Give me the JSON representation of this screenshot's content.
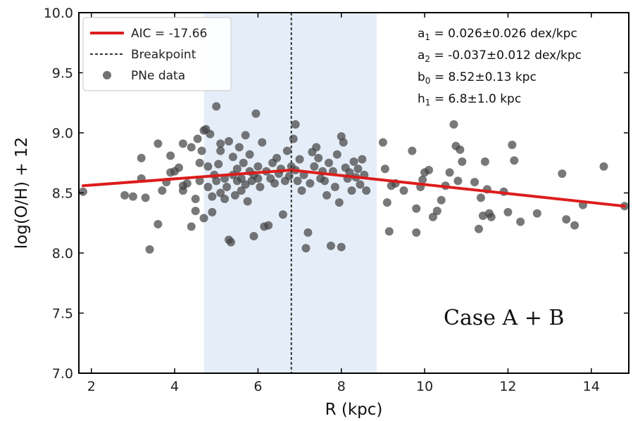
{
  "chart_data": {
    "type": "scatter",
    "xlabel": "R (kpc)",
    "ylabel": "log(O/H) + 12",
    "xlim": [
      1.7,
      14.9
    ],
    "ylim": [
      7.0,
      10.0
    ],
    "xticks": [
      "2",
      "4",
      "6",
      "8",
      "10",
      "12",
      "14"
    ],
    "yticks": [
      "7.0",
      "7.5",
      "8.0",
      "8.5",
      "9.0",
      "9.5",
      "10.0"
    ],
    "legend": {
      "placement": "top-left",
      "entries": [
        "AIC = -17.66",
        "Breakpoint",
        "PNe data"
      ]
    },
    "parameters": [
      {
        "sym": "a",
        "sub": "1",
        "text": " = 0.026±0.026 dex/kpc"
      },
      {
        "sym": "a",
        "sub": "2",
        "text": " = -0.037±0.012 dex/kpc"
      },
      {
        "sym": "b",
        "sub": "0",
        "text": " = 8.52±0.13 kpc"
      },
      {
        "sym": "h",
        "sub": "1",
        "text": " = 6.8±1.0 kpc"
      }
    ],
    "annotation": "Case A + B",
    "breakpoint": 6.8,
    "shaded_region": [
      4.7,
      8.85
    ],
    "fit_line": {
      "name": "AIC = -17.66",
      "color": "#dd1c1c",
      "x": [
        1.8,
        6.8,
        14.8
      ],
      "y": [
        8.56,
        8.69,
        8.39
      ]
    },
    "series": [
      {
        "name": "PNe data",
        "color": "#444444",
        "points": [
          [
            1.8,
            8.51
          ],
          [
            2.8,
            8.48
          ],
          [
            3.0,
            8.47
          ],
          [
            3.2,
            8.79
          ],
          [
            3.2,
            8.62
          ],
          [
            3.3,
            8.46
          ],
          [
            3.4,
            8.03
          ],
          [
            3.6,
            8.24
          ],
          [
            3.6,
            8.91
          ],
          [
            3.7,
            8.52
          ],
          [
            3.8,
            8.59
          ],
          [
            3.9,
            8.67
          ],
          [
            3.9,
            8.81
          ],
          [
            4.0,
            8.68
          ],
          [
            4.1,
            8.71
          ],
          [
            4.2,
            8.56
          ],
          [
            4.2,
            8.52
          ],
          [
            4.2,
            8.91
          ],
          [
            4.3,
            8.58
          ],
          [
            4.4,
            8.88
          ],
          [
            4.4,
            8.22
          ],
          [
            4.5,
            8.35
          ],
          [
            4.5,
            8.45
          ],
          [
            4.55,
            8.95
          ],
          [
            4.6,
            8.6
          ],
          [
            4.6,
            8.75
          ],
          [
            4.65,
            8.85
          ],
          [
            4.7,
            9.02
          ],
          [
            4.7,
            8.29
          ],
          [
            4.75,
            9.03
          ],
          [
            4.8,
            8.55
          ],
          [
            4.8,
            8.72
          ],
          [
            4.85,
            8.99
          ],
          [
            4.9,
            8.47
          ],
          [
            4.9,
            8.34
          ],
          [
            4.95,
            8.65
          ],
          [
            5.0,
            9.22
          ],
          [
            5.0,
            8.6
          ],
          [
            5.05,
            8.74
          ],
          [
            5.1,
            8.91
          ],
          [
            5.1,
            8.85
          ],
          [
            5.1,
            8.5
          ],
          [
            5.2,
            8.45
          ],
          [
            5.2,
            8.62
          ],
          [
            5.25,
            8.55
          ],
          [
            5.3,
            8.93
          ],
          [
            5.3,
            8.11
          ],
          [
            5.35,
            8.09
          ],
          [
            5.4,
            8.65
          ],
          [
            5.4,
            8.8
          ],
          [
            5.45,
            8.48
          ],
          [
            5.5,
            8.6
          ],
          [
            5.5,
            8.7
          ],
          [
            5.55,
            8.88
          ],
          [
            5.6,
            8.62
          ],
          [
            5.6,
            8.52
          ],
          [
            5.65,
            8.75
          ],
          [
            5.7,
            8.98
          ],
          [
            5.7,
            8.57
          ],
          [
            5.75,
            8.43
          ],
          [
            5.8,
            8.68
          ],
          [
            5.8,
            8.82
          ],
          [
            5.85,
            8.6
          ],
          [
            5.9,
            8.14
          ],
          [
            5.9,
            8.65
          ],
          [
            5.95,
            9.16
          ],
          [
            6.0,
            8.72
          ],
          [
            6.0,
            8.62
          ],
          [
            6.05,
            8.55
          ],
          [
            6.1,
            8.92
          ],
          [
            6.15,
            8.22
          ],
          [
            6.2,
            8.68
          ],
          [
            6.25,
            8.23
          ],
          [
            6.3,
            8.62
          ],
          [
            6.35,
            8.75
          ],
          [
            6.4,
            8.58
          ],
          [
            6.45,
            8.79
          ],
          [
            6.5,
            8.66
          ],
          [
            6.55,
            8.7
          ],
          [
            6.6,
            8.32
          ],
          [
            6.65,
            8.6
          ],
          [
            6.7,
            8.85
          ],
          [
            6.75,
            8.64
          ],
          [
            6.8,
            8.72
          ],
          [
            6.85,
            8.95
          ],
          [
            6.9,
            9.07
          ],
          [
            6.9,
            8.69
          ],
          [
            6.95,
            8.6
          ],
          [
            7.0,
            8.78
          ],
          [
            7.05,
            8.52
          ],
          [
            7.1,
            8.65
          ],
          [
            7.15,
            8.04
          ],
          [
            7.2,
            8.17
          ],
          [
            7.25,
            8.58
          ],
          [
            7.3,
            8.84
          ],
          [
            7.35,
            8.72
          ],
          [
            7.4,
            8.88
          ],
          [
            7.45,
            8.79
          ],
          [
            7.5,
            8.62
          ],
          [
            7.55,
            8.68
          ],
          [
            7.6,
            8.6
          ],
          [
            7.65,
            8.48
          ],
          [
            7.7,
            8.75
          ],
          [
            7.75,
            8.06
          ],
          [
            7.8,
            8.68
          ],
          [
            7.85,
            8.55
          ],
          [
            7.9,
            8.82
          ],
          [
            7.95,
            8.42
          ],
          [
            8.0,
            8.05
          ],
          [
            8.0,
            8.97
          ],
          [
            8.05,
            8.92
          ],
          [
            8.1,
            8.71
          ],
          [
            8.15,
            8.62
          ],
          [
            8.2,
            8.67
          ],
          [
            8.25,
            8.52
          ],
          [
            8.3,
            8.76
          ],
          [
            8.35,
            8.63
          ],
          [
            8.4,
            8.7
          ],
          [
            8.45,
            8.57
          ],
          [
            8.5,
            8.78
          ],
          [
            8.55,
            8.65
          ],
          [
            8.6,
            8.52
          ],
          [
            9.0,
            8.92
          ],
          [
            9.05,
            8.7
          ],
          [
            9.1,
            8.42
          ],
          [
            9.15,
            8.18
          ],
          [
            9.2,
            8.56
          ],
          [
            9.3,
            8.58
          ],
          [
            9.5,
            8.52
          ],
          [
            9.7,
            8.85
          ],
          [
            9.8,
            8.37
          ],
          [
            9.8,
            8.17
          ],
          [
            9.9,
            8.55
          ],
          [
            9.95,
            8.61
          ],
          [
            10.0,
            8.67
          ],
          [
            10.1,
            8.69
          ],
          [
            10.2,
            8.3
          ],
          [
            10.3,
            8.35
          ],
          [
            10.4,
            8.44
          ],
          [
            10.5,
            8.56
          ],
          [
            10.6,
            8.67
          ],
          [
            10.7,
            9.07
          ],
          [
            10.75,
            8.89
          ],
          [
            10.8,
            8.6
          ],
          [
            10.85,
            8.86
          ],
          [
            10.9,
            8.76
          ],
          [
            11.2,
            8.59
          ],
          [
            11.3,
            8.2
          ],
          [
            11.35,
            8.46
          ],
          [
            11.4,
            8.31
          ],
          [
            11.45,
            8.76
          ],
          [
            11.5,
            8.53
          ],
          [
            11.55,
            8.33
          ],
          [
            11.6,
            8.3
          ],
          [
            11.9,
            8.51
          ],
          [
            12.0,
            8.34
          ],
          [
            12.1,
            8.9
          ],
          [
            12.15,
            8.77
          ],
          [
            12.3,
            8.26
          ],
          [
            12.7,
            8.33
          ],
          [
            13.3,
            8.66
          ],
          [
            13.4,
            8.28
          ],
          [
            13.6,
            8.23
          ],
          [
            13.8,
            8.4
          ],
          [
            14.3,
            8.72
          ],
          [
            14.8,
            8.39
          ]
        ]
      }
    ]
  }
}
